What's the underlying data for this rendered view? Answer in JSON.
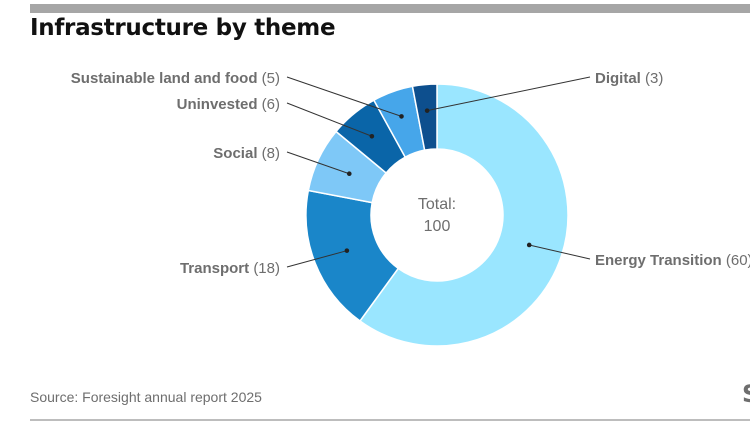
{
  "header": {
    "title": "Infrastructure by theme"
  },
  "chart_data": {
    "type": "pie",
    "variant": "donut",
    "title": "Infrastructure by theme",
    "categories": [
      "Energy Transition",
      "Transport",
      "Social",
      "Uninvested",
      "Sustainable land and food",
      "Digital"
    ],
    "values": [
      60,
      18,
      8,
      6,
      5,
      3
    ],
    "colors": [
      "#9ae6ff",
      "#1a86c9",
      "#7ec8f7",
      "#0a65a8",
      "#46a6ea",
      "#0d4f8e"
    ],
    "labels": [
      {
        "name": "Energy Transition",
        "count": "(60)"
      },
      {
        "name": "Transport",
        "count": "(18)"
      },
      {
        "name": "Social",
        "count": "(8)"
      },
      {
        "name": "Uninvested",
        "count": "(6)"
      },
      {
        "name": "Sustainable land and food",
        "count": "(5)"
      },
      {
        "name": "Digital",
        "count": "(3)"
      }
    ],
    "center": {
      "label": "Total:",
      "value": "100"
    },
    "legend": "none"
  },
  "footer": {
    "source": "Source: Foresight annual report 2025",
    "logo_fragment": "S"
  },
  "colors": {
    "text": "#6e6e6e",
    "title": "#111111",
    "rule": "#a6a6a6"
  }
}
